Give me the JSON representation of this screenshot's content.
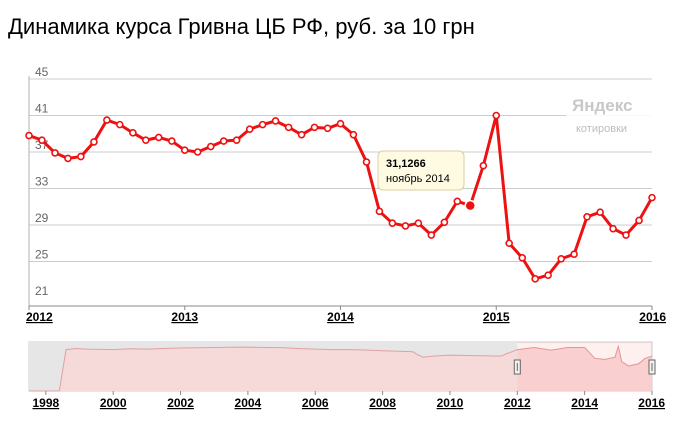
{
  "title": "Динамика курса Гривна ЦБ РФ, руб. за 10 грн",
  "watermark": {
    "brand": "Яндекс",
    "sub": "котировки"
  },
  "tooltip": {
    "value": "31,1266",
    "date": "ноябрь 2014"
  },
  "colors": {
    "series": "#ee1111",
    "grid": "#cccccc",
    "navigator_fill": "#f8d6d6",
    "navigator_line": "#e2a0a0",
    "navigator_mask": "#e6e6e6"
  },
  "chart_data": [
    {
      "type": "line",
      "title": "Динамика курса Гривна ЦБ РФ, руб. за 10 грн",
      "xlabel": "",
      "ylabel": "",
      "xlim": [
        2012.0,
        2016.0
      ],
      "ylim": [
        21,
        45
      ],
      "y_ticks": [
        "45",
        "41",
        "37",
        "33",
        "29",
        "25",
        "21"
      ],
      "x_ticks": [
        "2012",
        "2013",
        "2014",
        "2015",
        "2016"
      ],
      "grid": true,
      "highlight_index": 34,
      "series": [
        {
          "x": [
            2012.0,
            2012.083,
            2012.167,
            2012.25,
            2012.333,
            2012.417,
            2012.5,
            2012.583,
            2012.667,
            2012.75,
            2012.833,
            2012.917,
            2013.0,
            2013.083,
            2013.167,
            2013.25,
            2013.333,
            2013.417,
            2013.5,
            2013.583,
            2013.667,
            2013.75,
            2013.833,
            2013.917,
            2014.0,
            2014.083,
            2014.167,
            2014.25,
            2014.333,
            2014.417,
            2014.5,
            2014.583,
            2014.667,
            2014.75,
            2014.833,
            2014.917,
            2015.0,
            2015.083,
            2015.167,
            2015.25,
            2015.333,
            2015.417,
            2015.5,
            2015.583,
            2015.667,
            2015.75,
            2015.833,
            2015.917,
            2016.0
          ],
          "values": [
            38.8,
            38.3,
            36.9,
            36.3,
            36.5,
            38.1,
            40.5,
            40.0,
            39.1,
            38.3,
            38.6,
            38.2,
            37.2,
            37.0,
            37.6,
            38.2,
            38.3,
            39.5,
            40.0,
            40.4,
            39.7,
            38.9,
            39.7,
            39.6,
            40.1,
            38.9,
            35.9,
            30.5,
            29.2,
            28.9,
            29.2,
            27.9,
            29.3,
            31.6,
            31.1266,
            35.5,
            41.0,
            27.0,
            25.4,
            23.1,
            23.5,
            25.3,
            25.8,
            29.9,
            30.4,
            28.6,
            27.9,
            29.5,
            32.0
          ]
        }
      ]
    },
    {
      "type": "area",
      "title": "",
      "xlim": [
        1997.5,
        2016.0
      ],
      "ylim": [
        0,
        45
      ],
      "x_ticks": [
        "1998",
        "2000",
        "2002",
        "2004",
        "2006",
        "2008",
        "2010",
        "2012",
        "2014",
        "2016"
      ],
      "selected_range": [
        "2012",
        "2016"
      ],
      "series": [
        {
          "x": [
            1997.5,
            1998.4,
            1998.6,
            1998.9,
            1999.2,
            1999.6,
            2000.0,
            2000.5,
            2001.0,
            2001.5,
            2002.0,
            2002.5,
            2003.0,
            2003.5,
            2004.0,
            2004.5,
            2005.0,
            2005.5,
            2006.0,
            2006.5,
            2007.0,
            2007.5,
            2008.0,
            2008.5,
            2008.9,
            2009.0,
            2009.2,
            2009.5,
            2010.0,
            2010.5,
            2011.0,
            2011.5,
            2012.0,
            2012.5,
            2013.0,
            2013.5,
            2014.0,
            2014.3,
            2014.6,
            2014.9,
            2015.0,
            2015.1,
            2015.3,
            2015.6,
            2015.8,
            2016.0
          ],
          "values": [
            0,
            0,
            38,
            39,
            38.5,
            38.2,
            38,
            38.8,
            38.5,
            39,
            39.5,
            39.7,
            40,
            40.2,
            40.3,
            40,
            39.8,
            39,
            38.5,
            38,
            38,
            37.6,
            37,
            36.5,
            36,
            34,
            31,
            32,
            33,
            32.6,
            32.4,
            32,
            38,
            40,
            37.5,
            40,
            40,
            30,
            29,
            31,
            41,
            27,
            23,
            25,
            30,
            32
          ]
        }
      ]
    }
  ]
}
